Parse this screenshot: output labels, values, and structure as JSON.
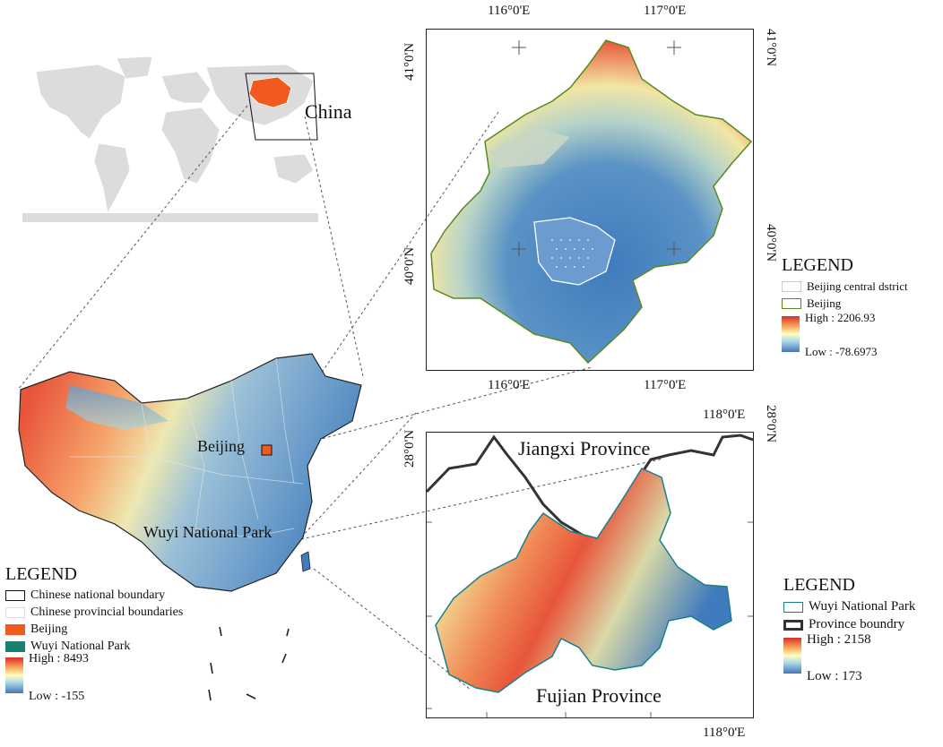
{
  "world_map": {
    "country_label": "China"
  },
  "china_map": {
    "label_beijing": "Beijing",
    "label_wuyi": "Wuyi National Park",
    "legend": {
      "title": "LEGEND",
      "items": [
        {
          "label": "Chinese national boundary"
        },
        {
          "label": "Chinese provincial boundaries"
        },
        {
          "label": "Beijing",
          "color": "#f05a1e"
        },
        {
          "label": "Wuyi National Park",
          "color": "#1a7f6e"
        }
      ],
      "high": "High : 8493",
      "low": "Low : -155"
    }
  },
  "beijing_map": {
    "top_ticks": [
      "116°0'E",
      "117°0'E"
    ],
    "bottom_ticks": [
      "116°0'E",
      "117°0'E"
    ],
    "left_ticks": [
      "41°0'N",
      "40°0'N"
    ],
    "right_ticks": [
      "41°0'N",
      "40°0'N"
    ],
    "legend": {
      "title": "LEGEND",
      "items": [
        {
          "label": "Beijing central dstrict"
        },
        {
          "label": "Beijing",
          "color": "#5a8a1e"
        }
      ],
      "high": "High : 2206.93",
      "low": "Low : -78.6973"
    }
  },
  "wuyi_map": {
    "top_tick": "118°0'E",
    "bottom_tick": "118°0'E",
    "left_tick": "28°0'N",
    "right_tick": "28°0'N",
    "label_jiangxi": "Jiangxi Province",
    "label_fujian": "Fujian Province",
    "legend": {
      "title": "LEGEND",
      "items": [
        {
          "label": "Wuyi National Park",
          "color": "#1a7f8a"
        },
        {
          "label": "Province boundry",
          "color": "#333333"
        }
      ],
      "high": "High : 2158",
      "low": "Low : 173"
    }
  }
}
